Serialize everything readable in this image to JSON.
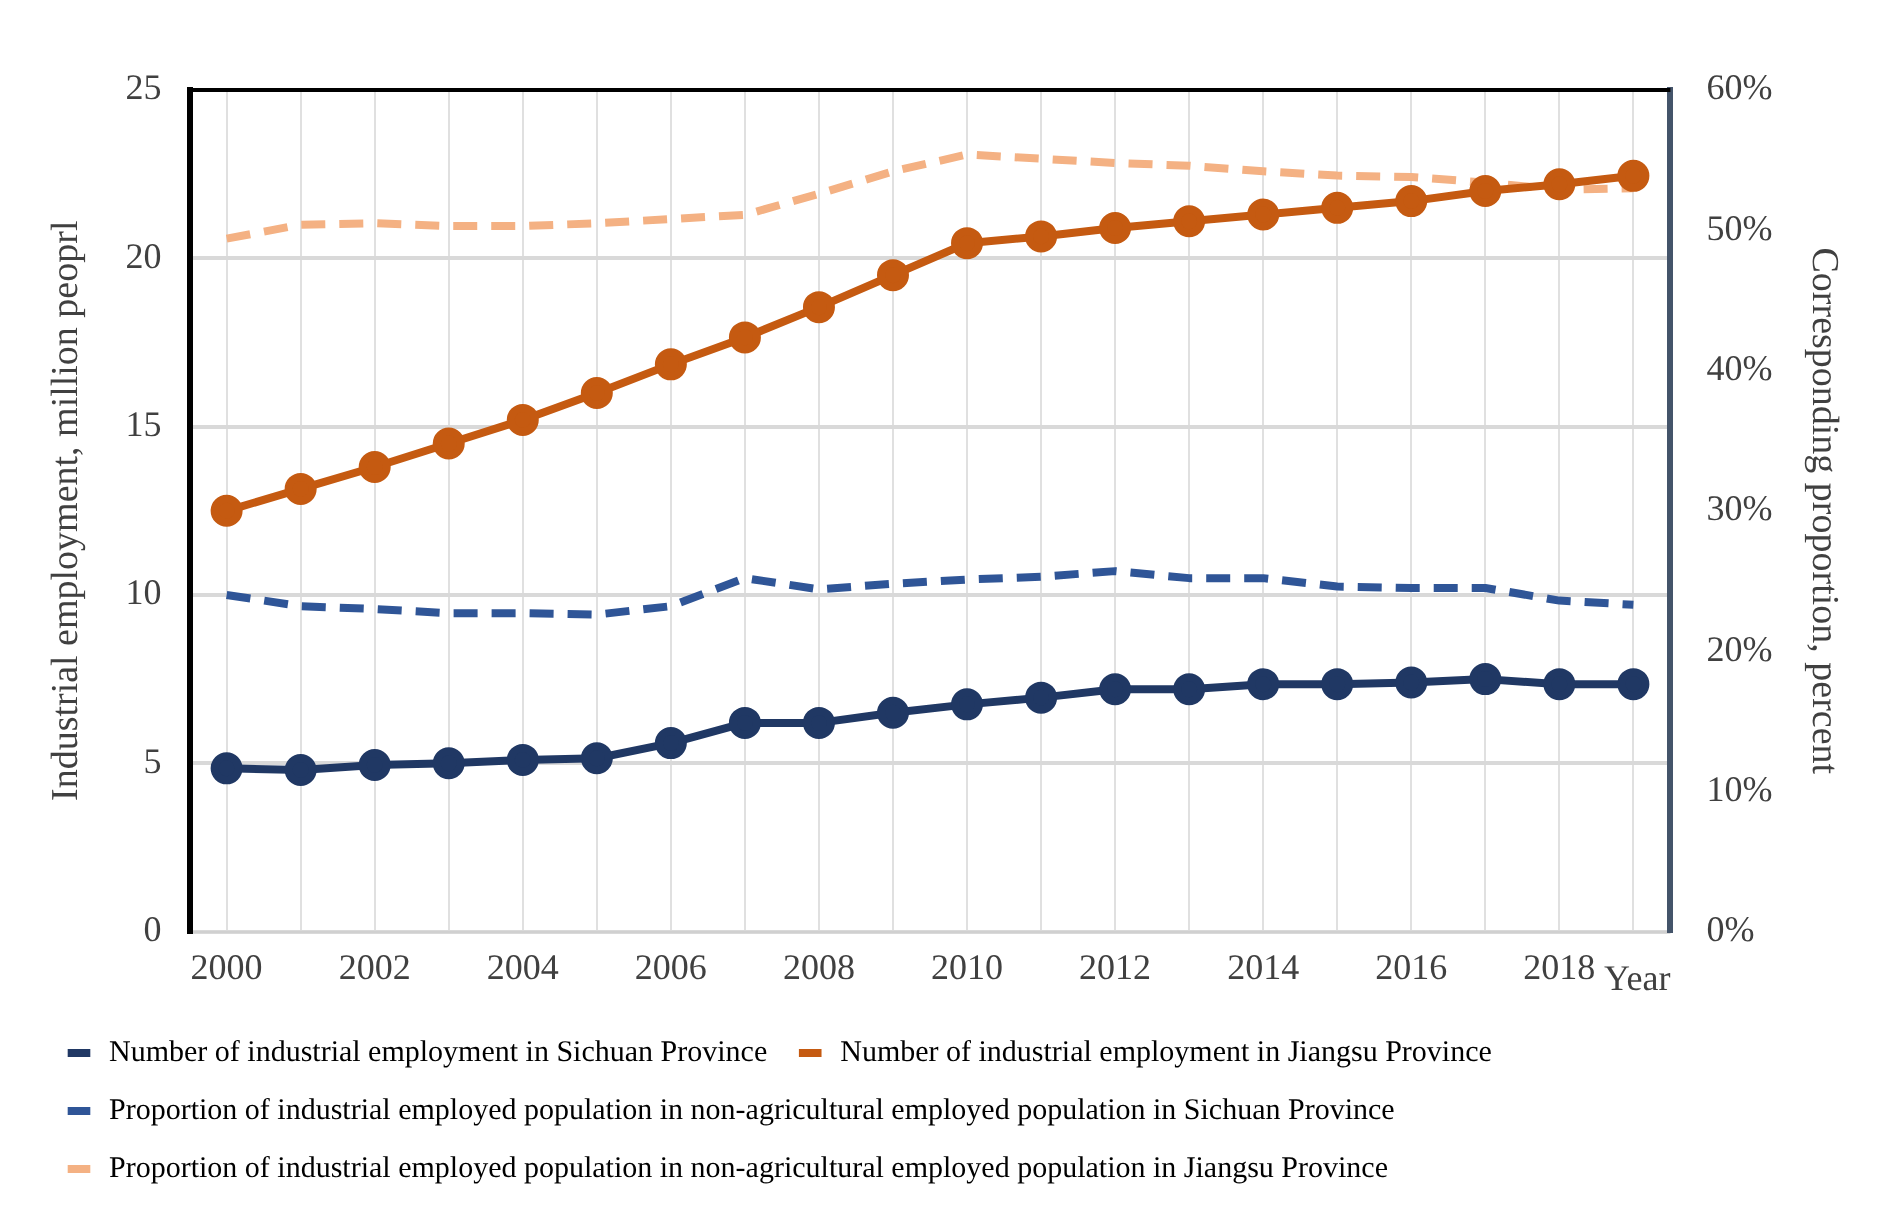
{
  "chart_data": {
    "type": "line",
    "ylabel": "Industrial employment, million peoprl",
    "y2label": "Corresponding proportion, percent",
    "xlabel": "Year",
    "categories": [
      "2000",
      null,
      "2002",
      null,
      "2004",
      null,
      "2006",
      null,
      "2008",
      null,
      "2010",
      null,
      "2012",
      null,
      "2014",
      null,
      "2016",
      null,
      "2018",
      null
    ],
    "ylim": [
      0,
      25
    ],
    "yticks": [
      0,
      5,
      10,
      15,
      20,
      25
    ],
    "y2lim": [
      0,
      60
    ],
    "y2ticks": [
      {
        "value": 0,
        "label": "0%"
      },
      {
        "value": 10,
        "label": "10%"
      },
      {
        "value": 20,
        "label": "20%"
      },
      {
        "value": 30,
        "label": "30%"
      },
      {
        "value": 40,
        "label": "40%"
      },
      {
        "value": 50,
        "label": "50%"
      },
      {
        "value": 60,
        "label": "60%"
      }
    ],
    "grid": true,
    "legend": "bottom",
    "series": [
      {
        "name": "Number of industrial employment in Sichuan Province",
        "color": "#203864",
        "marker": "circle",
        "line_style": "solid",
        "values": [
          4.85,
          4.8,
          4.95,
          5.0,
          5.1,
          5.15,
          5.6,
          6.2,
          6.2,
          6.5,
          6.75,
          6.95,
          7.2,
          7.2,
          7.35,
          7.35,
          7.4,
          7.5,
          7.35,
          7.35
        ]
      },
      {
        "name": "Number of industrial employment in Jiangsu Province",
        "color": "#c55a11",
        "marker": "circle",
        "line_style": "solid",
        "values": [
          12.5,
          13.15,
          13.8,
          14.5,
          15.2,
          16.0,
          16.85,
          17.65,
          18.55,
          19.5,
          20.45,
          20.65,
          20.9,
          21.1,
          21.3,
          21.5,
          21.7,
          22.0,
          22.2,
          22.45
        ]
      },
      {
        "name": "Proportion of industrial employed population in non-agricultural employed population in Sichuan Province",
        "color": "#2f5597",
        "marker": "none",
        "line_style": "dashed",
        "axis": "y2",
        "values": [
          24.0,
          23.2,
          23.0,
          22.7,
          22.7,
          22.6,
          23.2,
          25.2,
          24.4,
          24.8,
          25.1,
          25.3,
          25.7,
          25.2,
          25.2,
          24.6,
          24.5,
          24.5,
          23.6,
          23.3
        ]
      },
      {
        "name": "Proportion of industrial employed population in non-agricultural employed population in Jiangsu Province",
        "color": "#f4b183",
        "marker": "none",
        "line_style": "dashed",
        "axis": "y2",
        "values": [
          49.4,
          50.4,
          50.5,
          50.3,
          50.3,
          50.5,
          50.8,
          51.1,
          52.6,
          54.2,
          55.4,
          55.1,
          54.8,
          54.6,
          54.2,
          53.9,
          53.8,
          53.4,
          52.9,
          53.0
        ]
      }
    ]
  }
}
